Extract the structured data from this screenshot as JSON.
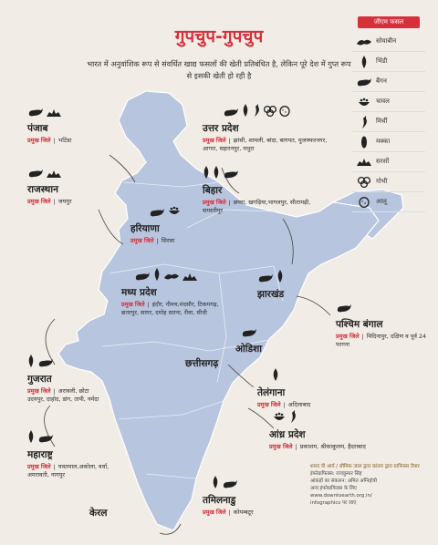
{
  "title": "गुपचुप-गुपचुप",
  "subtitle": "भारत में अनुवांशिक रूप से संवर्धित खाद्य फसलों की खेती प्रतिबंधित है, लेकिन पूरे देश में गुप्त रूप से इसकी खेती हो रही है",
  "district_label": "प्रमुख जिले",
  "legend": {
    "title": "जीएम फसल",
    "items": [
      {
        "name": "सोयाबीन",
        "icon": "soybean-icon"
      },
      {
        "name": "भिंडी",
        "icon": "okra-icon"
      },
      {
        "name": "बैंगन",
        "icon": "brinjal-icon"
      },
      {
        "name": "चावल",
        "icon": "rice-icon"
      },
      {
        "name": "मिर्ची",
        "icon": "chilli-icon"
      },
      {
        "name": "मक्का",
        "icon": "maize-icon"
      },
      {
        "name": "सरसों",
        "icon": "mustard-icon"
      },
      {
        "name": "गोभी",
        "icon": "cauliflower-icon"
      },
      {
        "name": "आलू",
        "icon": "potato-icon"
      }
    ]
  },
  "regions": {
    "punjab": {
      "name": "पंजाब",
      "districts": "भटिंडा",
      "icons": [
        "brinjal-icon",
        "mustard-icon"
      ]
    },
    "rajasthan": {
      "name": "राजस्थान",
      "districts": "जयपुर",
      "icons": [
        "brinjal-icon",
        "mustard-icon"
      ]
    },
    "haryana": {
      "name": "हरियाणा",
      "districts": "सिरसा",
      "icons": [
        "brinjal-icon",
        "rice-icon"
      ]
    },
    "up": {
      "name": "उत्तर प्रदेश",
      "districts": "झांसी, शामली, बांदा, बागपत, मुजफ्फरनगर, आगरा, सहारनपुर, मथुरा",
      "icons": [
        "brinjal-icon",
        "okra-icon",
        "chilli-icon",
        "cauliflower-icon",
        "potato-icon"
      ]
    },
    "bihar": {
      "name": "बिहार",
      "districts": "छपरा, खगड़िया,भागलपुर, सीतामढ़ी, समस्तीपुर",
      "icons": [
        "okra-icon",
        "okra-icon",
        "brinjal-icon"
      ]
    },
    "mp": {
      "name": "मध्य प्रदेश",
      "districts": "इंदौर, नीमच,मंदसौर, टिकमगढ़, छतरपुर, सागर, दमोह सतना, रीवा, सीधी",
      "icons": [
        "brinjal-icon",
        "okra-icon",
        "soybean-icon",
        "mustard-icon"
      ]
    },
    "jharkhand": {
      "name": "झारखंड",
      "icons": [
        "brinjal-icon",
        "okra-icon"
      ]
    },
    "wb": {
      "name": "पश्चिम बंगाल",
      "districts": "मिदिनापुर, दक्षिण व पूर्व 24 परगना",
      "icons": [
        "brinjal-icon"
      ]
    },
    "odisha": {
      "name": "ओडिशा",
      "icons": [
        "brinjal-icon"
      ]
    },
    "chhattisgarh": {
      "name": "छत्तीसगढ़"
    },
    "gujarat": {
      "name": "गुजरात",
      "districts": "अरावली, छोटा उदयपुर, दाहोद, डांग, तापी, नर्मदा",
      "icons": [
        "okra-icon",
        "brinjal-icon"
      ]
    },
    "telangana": {
      "name": "तेलंगाना",
      "districts": "अदिलाबाद",
      "icons": [
        "okra-icon"
      ]
    },
    "ap": {
      "name": "आंध्र प्रदेश",
      "districts": "प्रकाशम, श्रीकाकुलम, हैदराबाद",
      "icons": [
        "rice-icon",
        "chilli-icon"
      ]
    },
    "maharashtra": {
      "name": "महाराष्ट्र",
      "districts": "यवतमाल,अकोला, वर्धा, अमरावती, नागपुर",
      "icons": [
        "okra-icon",
        "brinjal-icon"
      ]
    },
    "kerala": {
      "name": "केरल"
    },
    "tn": {
      "name": "तमिलनाडु",
      "districts": "कोयम्बटूर",
      "icons": [
        "okra-icon",
        "brinjal-icon"
      ]
    }
  },
  "credit": {
    "line1": "शारद वी आर्य / सौमिक जाल द्वारा कांतार द्वारा ग्राफिक्स तैयार",
    "line2": "इंफोग्राफिक्स: राजकुमार सिंह",
    "line3": "आंकड़ों का संकलन: अमित अग्निहोत्री",
    "line4": "अन्य इंफोग्राफिक्स के लिए",
    "line5": "www.downtoearth.org.in/",
    "line6": "infographics पर जाएं"
  },
  "colors": {
    "map": "#b7c5de",
    "accent": "#d6303b",
    "icon": "#222222"
  }
}
